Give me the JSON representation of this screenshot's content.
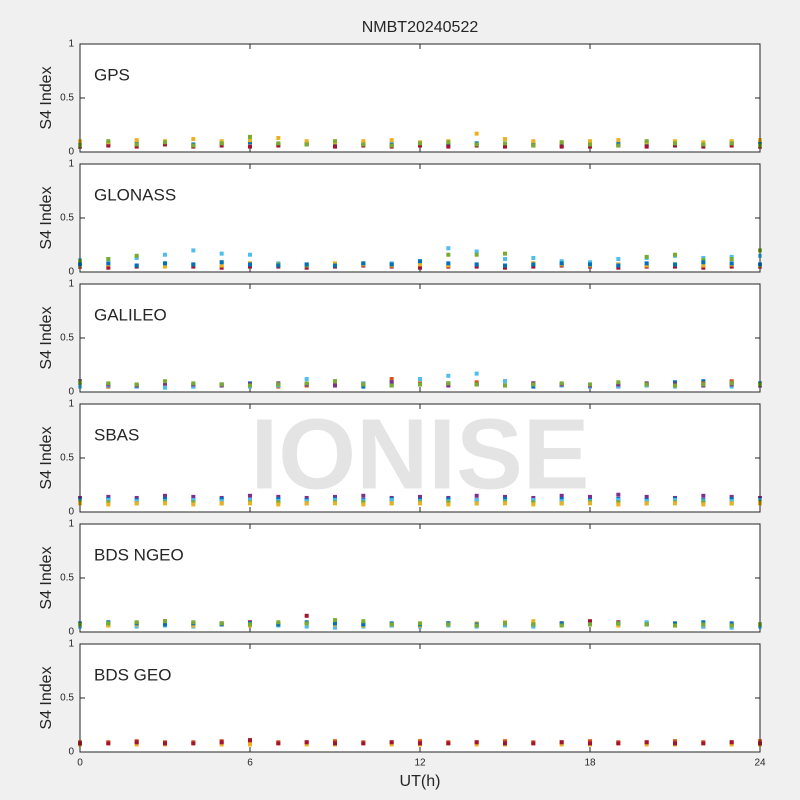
{
  "watermark": "IONISE",
  "chart_data": [
    {
      "type": "scatter",
      "title": "NMBT20240522",
      "label": "GPS",
      "ylabel": "S4 Index",
      "x": [
        0,
        1,
        2,
        3,
        4,
        5,
        6,
        7,
        8,
        9,
        10,
        11,
        12,
        13,
        14,
        15,
        16,
        17,
        18,
        19,
        20,
        21,
        22,
        23,
        24
      ],
      "series": [
        {
          "name": "s1",
          "color": "#0072BD",
          "values": [
            0.08,
            0.07,
            0.09,
            0.08,
            0.07,
            0.08,
            0.09,
            0.07,
            0.08,
            0.07,
            0.08,
            0.07,
            0.08,
            0.07,
            0.08,
            0.07,
            0.08,
            0.06,
            0.07,
            0.08,
            0.07,
            0.08,
            0.07,
            0.09,
            0.08
          ]
        },
        {
          "name": "s2",
          "color": "#A2142F",
          "values": [
            0.05,
            0.06,
            0.05,
            0.07,
            0.05,
            0.06,
            0.05,
            0.06,
            0.07,
            0.05,
            0.06,
            0.05,
            0.06,
            0.05,
            0.06,
            0.05,
            0.06,
            0.05,
            0.05,
            0.06,
            0.05,
            0.06,
            0.05,
            0.06,
            0.05
          ]
        },
        {
          "name": "s3",
          "color": "#EDB120",
          "values": [
            0.1,
            0.09,
            0.11,
            0.1,
            0.12,
            0.1,
            0.11,
            0.13,
            0.1,
            0.09,
            0.1,
            0.11,
            0.09,
            0.1,
            0.17,
            0.12,
            0.1,
            0.09,
            0.1,
            0.11,
            0.09,
            0.1,
            0.09,
            0.1,
            0.11
          ]
        },
        {
          "name": "s4",
          "color": "#77AC30",
          "values": [
            0.06,
            0.1,
            0.07,
            0.09,
            0.06,
            0.08,
            0.14,
            0.08,
            0.07,
            0.1,
            0.07,
            0.06,
            0.08,
            0.09,
            0.07,
            0.08,
            0.06,
            0.09,
            0.07,
            0.06,
            0.1,
            0.08,
            0.07,
            0.08,
            0.06
          ]
        }
      ],
      "ylim": [
        0,
        1
      ],
      "yticks": [
        0,
        0.5,
        1
      ],
      "xlim": [
        0,
        24
      ],
      "xticks": [
        0,
        6,
        12,
        18,
        24
      ]
    },
    {
      "type": "scatter",
      "label": "GLONASS",
      "ylabel": "S4 Index",
      "x": [
        0,
        1,
        2,
        3,
        4,
        5,
        6,
        7,
        8,
        9,
        10,
        11,
        12,
        13,
        14,
        15,
        16,
        17,
        18,
        19,
        20,
        21,
        22,
        23,
        24
      ],
      "series": [
        {
          "name": "s1",
          "color": "#4DBEEE",
          "values": [
            0.11,
            0.12,
            0.13,
            0.16,
            0.2,
            0.17,
            0.16,
            0.08,
            0.07,
            0.06,
            0.07,
            0.08,
            0.09,
            0.22,
            0.19,
            0.12,
            0.13,
            0.1,
            0.09,
            0.12,
            0.13,
            0.15,
            0.13,
            0.14,
            0.15
          ]
        },
        {
          "name": "s2",
          "color": "#A2142F",
          "values": [
            0.05,
            0.04,
            0.05,
            0.06,
            0.05,
            0.04,
            0.05,
            0.05,
            0.04,
            0.05,
            0.06,
            0.05,
            0.04,
            0.05,
            0.05,
            0.04,
            0.05,
            0.06,
            0.05,
            0.04,
            0.05,
            0.05,
            0.04,
            0.05,
            0.05
          ]
        },
        {
          "name": "s3",
          "color": "#77AC30",
          "values": [
            0.1,
            0.12,
            0.15,
            0.08,
            0.07,
            0.09,
            0.08,
            0.07,
            0.06,
            0.07,
            0.08,
            0.07,
            0.09,
            0.16,
            0.16,
            0.17,
            0.08,
            0.07,
            0.06,
            0.07,
            0.14,
            0.16,
            0.11,
            0.12,
            0.2
          ]
        },
        {
          "name": "s4",
          "color": "#EDB120",
          "values": [
            0.06,
            0.07,
            0.06,
            0.05,
            0.07,
            0.06,
            0.08,
            0.06,
            0.07,
            0.08,
            0.07,
            0.06,
            0.07,
            0.06,
            0.07,
            0.06,
            0.08,
            0.07,
            0.06,
            0.07,
            0.06,
            0.07,
            0.06,
            0.07,
            0.06
          ]
        },
        {
          "name": "s5",
          "color": "#0072BD",
          "values": [
            0.07,
            0.08,
            0.06,
            0.08,
            0.07,
            0.09,
            0.07,
            0.06,
            0.07,
            0.06,
            0.08,
            0.07,
            0.1,
            0.08,
            0.07,
            0.06,
            0.07,
            0.08,
            0.07,
            0.06,
            0.08,
            0.07,
            0.09,
            0.08,
            0.07
          ]
        }
      ],
      "ylim": [
        0,
        1
      ],
      "yticks": [
        0,
        0.5,
        1
      ],
      "xlim": [
        0,
        24
      ],
      "xticks": [
        0,
        6,
        12,
        18,
        24
      ]
    },
    {
      "type": "scatter",
      "label": "GALILEO",
      "ylabel": "S4 Index",
      "x": [
        0,
        1,
        2,
        3,
        4,
        5,
        6,
        7,
        8,
        9,
        10,
        11,
        12,
        13,
        14,
        15,
        16,
        17,
        18,
        19,
        20,
        21,
        22,
        23,
        24
      ],
      "series": [
        {
          "name": "s1",
          "color": "#0072BD",
          "values": [
            0.08,
            0.06,
            0.05,
            0.06,
            0.05,
            0.07,
            0.08,
            0.06,
            0.07,
            0.06,
            0.05,
            0.06,
            0.07,
            0.08,
            0.07,
            0.06,
            0.05,
            0.06,
            0.05,
            0.06,
            0.07,
            0.09,
            0.1,
            0.09,
            0.08
          ]
        },
        {
          "name": "s2",
          "color": "#D95319",
          "values": [
            0.06,
            0.05,
            0.06,
            0.05,
            0.06,
            0.07,
            0.06,
            0.05,
            0.06,
            0.07,
            0.08,
            0.12,
            0.08,
            0.07,
            0.09,
            0.1,
            0.08,
            0.07,
            0.06,
            0.05,
            0.06,
            0.07,
            0.08,
            0.1,
            0.07
          ]
        },
        {
          "name": "s3",
          "color": "#4DBEEE",
          "values": [
            0.05,
            0.06,
            0.05,
            0.04,
            0.05,
            0.06,
            0.05,
            0.06,
            0.12,
            0.1,
            0.08,
            0.09,
            0.12,
            0.15,
            0.17,
            0.1,
            0.07,
            0.06,
            0.05,
            0.05,
            0.06,
            0.05,
            0.06,
            0.05,
            0.06
          ]
        },
        {
          "name": "s4",
          "color": "#7E2F8E",
          "values": [
            0.1,
            0.07,
            0.06,
            0.08,
            0.07,
            0.06,
            0.07,
            0.08,
            0.07,
            0.06,
            0.07,
            0.09,
            0.07,
            0.06,
            0.07,
            0.06,
            0.08,
            0.07,
            0.06,
            0.07,
            0.08,
            0.07,
            0.06,
            0.07,
            0.06
          ]
        },
        {
          "name": "s5",
          "color": "#77AC30",
          "values": [
            0.09,
            0.08,
            0.07,
            0.1,
            0.08,
            0.07,
            0.06,
            0.07,
            0.08,
            0.1,
            0.07,
            0.06,
            0.07,
            0.08,
            0.07,
            0.06,
            0.07,
            0.08,
            0.07,
            0.09,
            0.07,
            0.06,
            0.07,
            0.08,
            0.07
          ]
        }
      ],
      "ylim": [
        0,
        1
      ],
      "yticks": [
        0,
        0.5,
        1
      ],
      "xlim": [
        0,
        24
      ],
      "xticks": [
        0,
        6,
        12,
        18,
        24
      ]
    },
    {
      "type": "scatter",
      "label": "SBAS",
      "ylabel": "S4 Index",
      "x": [
        0,
        1,
        2,
        3,
        4,
        5,
        6,
        7,
        8,
        9,
        10,
        11,
        12,
        13,
        14,
        15,
        16,
        17,
        18,
        19,
        20,
        21,
        22,
        23,
        24
      ],
      "series": [
        {
          "name": "s1",
          "color": "#7E2F8E",
          "values": [
            0.13,
            0.14,
            0.13,
            0.15,
            0.14,
            0.13,
            0.15,
            0.14,
            0.13,
            0.14,
            0.15,
            0.13,
            0.14,
            0.13,
            0.15,
            0.14,
            0.13,
            0.15,
            0.14,
            0.16,
            0.14,
            0.13,
            0.15,
            0.14,
            0.13
          ]
        },
        {
          "name": "s2",
          "color": "#0072BD",
          "values": [
            0.11,
            0.12,
            0.11,
            0.12,
            0.11,
            0.12,
            0.11,
            0.12,
            0.11,
            0.12,
            0.11,
            0.12,
            0.11,
            0.12,
            0.11,
            0.12,
            0.11,
            0.12,
            0.11,
            0.12,
            0.11,
            0.12,
            0.11,
            0.12,
            0.11
          ]
        },
        {
          "name": "s3",
          "color": "#4DBEEE",
          "values": [
            0.1,
            0.11,
            0.1,
            0.1,
            0.11,
            0.1,
            0.11,
            0.1,
            0.1,
            0.11,
            0.1,
            0.11,
            0.1,
            0.1,
            0.11,
            0.1,
            0.11,
            0.1,
            0.1,
            0.11,
            0.1,
            0.11,
            0.1,
            0.1,
            0.11
          ]
        },
        {
          "name": "s4",
          "color": "#77AC30",
          "values": [
            0.09,
            0.09,
            0.08,
            0.09,
            0.09,
            0.08,
            0.09,
            0.09,
            0.08,
            0.09,
            0.09,
            0.08,
            0.09,
            0.09,
            0.08,
            0.09,
            0.09,
            0.08,
            0.09,
            0.09,
            0.08,
            0.09,
            0.09,
            0.08,
            0.09
          ]
        },
        {
          "name": "s5",
          "color": "#EDB120",
          "values": [
            0.08,
            0.07,
            0.08,
            0.08,
            0.07,
            0.08,
            0.08,
            0.07,
            0.08,
            0.08,
            0.07,
            0.08,
            0.08,
            0.07,
            0.08,
            0.08,
            0.07,
            0.08,
            0.08,
            0.07,
            0.08,
            0.08,
            0.07,
            0.08,
            0.08
          ]
        }
      ],
      "ylim": [
        0,
        1
      ],
      "yticks": [
        0,
        0.5,
        1
      ],
      "xlim": [
        0,
        24
      ],
      "xticks": [
        0,
        6,
        12,
        18,
        24
      ]
    },
    {
      "type": "scatter",
      "label": "BDS NGEO",
      "ylabel": "S4 Index",
      "x": [
        0,
        1,
        2,
        3,
        4,
        5,
        6,
        7,
        8,
        9,
        10,
        11,
        12,
        13,
        14,
        15,
        16,
        17,
        18,
        19,
        20,
        21,
        22,
        23,
        24
      ],
      "series": [
        {
          "name": "s1",
          "color": "#A2142F",
          "values": [
            0.06,
            0.07,
            0.08,
            0.1,
            0.07,
            0.08,
            0.09,
            0.07,
            0.15,
            0.09,
            0.07,
            0.06,
            0.07,
            0.08,
            0.06,
            0.07,
            0.06,
            0.08,
            0.1,
            0.09,
            0.08,
            0.06,
            0.05,
            0.06,
            0.07
          ]
        },
        {
          "name": "s2",
          "color": "#4DBEEE",
          "values": [
            0.05,
            0.06,
            0.05,
            0.06,
            0.05,
            0.07,
            0.08,
            0.06,
            0.05,
            0.04,
            0.05,
            0.06,
            0.05,
            0.06,
            0.05,
            0.06,
            0.05,
            0.06,
            0.07,
            0.08,
            0.09,
            0.06,
            0.05,
            0.04,
            0.05
          ]
        },
        {
          "name": "s3",
          "color": "#EDB120",
          "values": [
            0.07,
            0.06,
            0.07,
            0.08,
            0.06,
            0.07,
            0.06,
            0.07,
            0.08,
            0.07,
            0.06,
            0.07,
            0.06,
            0.07,
            0.08,
            0.09,
            0.1,
            0.08,
            0.07,
            0.06,
            0.07,
            0.06,
            0.07,
            0.06,
            0.07
          ]
        },
        {
          "name": "s4",
          "color": "#0072BD",
          "values": [
            0.08,
            0.09,
            0.08,
            0.07,
            0.08,
            0.07,
            0.08,
            0.07,
            0.09,
            0.08,
            0.07,
            0.08,
            0.07,
            0.08,
            0.07,
            0.08,
            0.07,
            0.08,
            0.07,
            0.08,
            0.07,
            0.08,
            0.09,
            0.08,
            0.07
          ]
        },
        {
          "name": "s5",
          "color": "#77AC30",
          "values": [
            0.07,
            0.08,
            0.09,
            0.1,
            0.09,
            0.08,
            0.07,
            0.09,
            0.08,
            0.11,
            0.1,
            0.07,
            0.08,
            0.07,
            0.06,
            0.08,
            0.07,
            0.06,
            0.07,
            0.08,
            0.07,
            0.06,
            0.07,
            0.06,
            0.07
          ]
        }
      ],
      "ylim": [
        0,
        1
      ],
      "yticks": [
        0,
        0.5,
        1
      ],
      "xlim": [
        0,
        24
      ],
      "xticks": [
        0,
        6,
        12,
        18,
        24
      ]
    },
    {
      "type": "scatter",
      "label": "BDS GEO",
      "ylabel": "S4 Index",
      "xlabel": "UT(h)",
      "x": [
        0,
        1,
        2,
        3,
        4,
        5,
        6,
        7,
        8,
        9,
        10,
        11,
        12,
        13,
        14,
        15,
        16,
        17,
        18,
        19,
        20,
        21,
        22,
        23,
        24
      ],
      "series": [
        {
          "name": "s1",
          "color": "#D95319",
          "values": [
            0.09,
            0.09,
            0.1,
            0.09,
            0.09,
            0.1,
            0.1,
            0.09,
            0.09,
            0.1,
            0.09,
            0.09,
            0.1,
            0.09,
            0.09,
            0.1,
            0.09,
            0.09,
            0.1,
            0.09,
            0.09,
            0.1,
            0.09,
            0.09,
            0.1
          ]
        },
        {
          "name": "s2",
          "color": "#EDB120",
          "values": [
            0.07,
            0.08,
            0.07,
            0.07,
            0.08,
            0.07,
            0.07,
            0.08,
            0.07,
            0.07,
            0.08,
            0.07,
            0.07,
            0.08,
            0.07,
            0.07,
            0.08,
            0.07,
            0.07,
            0.08,
            0.07,
            0.07,
            0.08,
            0.07,
            0.07
          ]
        },
        {
          "name": "s3",
          "color": "#A2142F",
          "values": [
            0.08,
            0.08,
            0.09,
            0.08,
            0.08,
            0.09,
            0.11,
            0.08,
            0.09,
            0.08,
            0.08,
            0.09,
            0.08,
            0.08,
            0.09,
            0.08,
            0.08,
            0.09,
            0.08,
            0.08,
            0.09,
            0.08,
            0.08,
            0.09,
            0.08
          ]
        }
      ],
      "ylim": [
        0,
        1
      ],
      "yticks": [
        0,
        0.5,
        1
      ],
      "xlim": [
        0,
        24
      ],
      "xticks": [
        0,
        6,
        12,
        18,
        24
      ]
    }
  ]
}
